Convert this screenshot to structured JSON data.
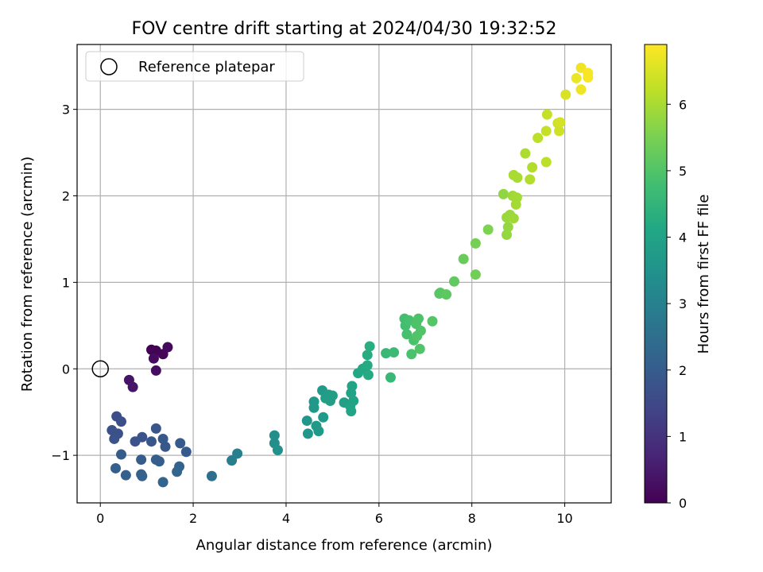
{
  "chart_data": {
    "type": "scatter",
    "title": "FOV centre drift starting at 2024/04/30 19:32:52",
    "xlabel": "Angular distance from reference (arcmin)",
    "ylabel": "Rotation from reference (arcmin)",
    "xlim": [
      -0.5,
      11.0
    ],
    "ylim": [
      -1.55,
      3.75
    ],
    "xticks": [
      0,
      2,
      4,
      6,
      8,
      10
    ],
    "yticks": [
      -1,
      0,
      1,
      2,
      3
    ],
    "grid": true,
    "legend": {
      "placement": "top-left",
      "entries": [
        "Reference platepar"
      ]
    },
    "reference": {
      "x": 0.0,
      "y": 0.0
    },
    "colorbar": {
      "label": "Hours from first FF file",
      "colormap": "viridis",
      "range": [
        0,
        6.9
      ],
      "ticks": [
        0,
        1,
        2,
        3,
        4,
        5,
        6
      ]
    },
    "points": [
      {
        "x": 1.1,
        "y": 0.22,
        "c": 0.0
      },
      {
        "x": 1.2,
        "y": 0.21,
        "c": 0.05
      },
      {
        "x": 1.35,
        "y": 0.17,
        "c": 0.1
      },
      {
        "x": 1.45,
        "y": 0.25,
        "c": 0.15
      },
      {
        "x": 1.15,
        "y": 0.12,
        "c": 0.2
      },
      {
        "x": 1.2,
        "y": -0.02,
        "c": 0.25
      },
      {
        "x": 0.62,
        "y": -0.13,
        "c": 0.35
      },
      {
        "x": 0.7,
        "y": -0.21,
        "c": 0.4
      },
      {
        "x": 0.35,
        "y": -0.55,
        "c": 1.6
      },
      {
        "x": 0.45,
        "y": -0.61,
        "c": 1.65
      },
      {
        "x": 0.25,
        "y": -0.71,
        "c": 1.7
      },
      {
        "x": 0.38,
        "y": -0.75,
        "c": 1.7
      },
      {
        "x": 0.3,
        "y": -0.81,
        "c": 1.75
      },
      {
        "x": 0.75,
        "y": -0.84,
        "c": 1.8
      },
      {
        "x": 0.9,
        "y": -0.79,
        "c": 1.8
      },
      {
        "x": 1.1,
        "y": -0.84,
        "c": 1.85
      },
      {
        "x": 1.2,
        "y": -0.69,
        "c": 1.85
      },
      {
        "x": 1.35,
        "y": -0.81,
        "c": 1.9
      },
      {
        "x": 1.4,
        "y": -0.9,
        "c": 1.9
      },
      {
        "x": 1.72,
        "y": -0.86,
        "c": 1.95
      },
      {
        "x": 1.85,
        "y": -0.96,
        "c": 1.95
      },
      {
        "x": 0.45,
        "y": -0.99,
        "c": 2.0
      },
      {
        "x": 0.88,
        "y": -1.05,
        "c": 2.0
      },
      {
        "x": 1.2,
        "y": -1.05,
        "c": 2.05
      },
      {
        "x": 1.27,
        "y": -1.07,
        "c": 2.05
      },
      {
        "x": 0.33,
        "y": -1.15,
        "c": 2.1
      },
      {
        "x": 0.55,
        "y": -1.23,
        "c": 2.1
      },
      {
        "x": 0.88,
        "y": -1.22,
        "c": 2.15
      },
      {
        "x": 0.9,
        "y": -1.24,
        "c": 2.15
      },
      {
        "x": 1.35,
        "y": -1.31,
        "c": 2.2
      },
      {
        "x": 1.7,
        "y": -1.13,
        "c": 2.2
      },
      {
        "x": 1.65,
        "y": -1.19,
        "c": 2.25
      },
      {
        "x": 2.4,
        "y": -1.24,
        "c": 2.5
      },
      {
        "x": 2.83,
        "y": -1.06,
        "c": 2.9
      },
      {
        "x": 2.95,
        "y": -0.98,
        "c": 3.0
      },
      {
        "x": 3.75,
        "y": -0.77,
        "c": 3.4
      },
      {
        "x": 3.75,
        "y": -0.86,
        "c": 3.4
      },
      {
        "x": 3.82,
        "y": -0.94,
        "c": 3.45
      },
      {
        "x": 4.45,
        "y": -0.6,
        "c": 3.6
      },
      {
        "x": 4.47,
        "y": -0.75,
        "c": 3.6
      },
      {
        "x": 4.6,
        "y": -0.38,
        "c": 3.65
      },
      {
        "x": 4.6,
        "y": -0.45,
        "c": 3.65
      },
      {
        "x": 4.65,
        "y": -0.66,
        "c": 3.7
      },
      {
        "x": 4.7,
        "y": -0.72,
        "c": 3.7
      },
      {
        "x": 4.78,
        "y": -0.25,
        "c": 3.75
      },
      {
        "x": 4.8,
        "y": -0.56,
        "c": 3.75
      },
      {
        "x": 4.85,
        "y": -0.34,
        "c": 3.8
      },
      {
        "x": 4.92,
        "y": -0.3,
        "c": 3.8
      },
      {
        "x": 4.95,
        "y": -0.37,
        "c": 3.85
      },
      {
        "x": 5.0,
        "y": -0.31,
        "c": 3.85
      },
      {
        "x": 5.25,
        "y": -0.39,
        "c": 3.9
      },
      {
        "x": 5.38,
        "y": -0.43,
        "c": 3.95
      },
      {
        "x": 5.4,
        "y": -0.28,
        "c": 3.95
      },
      {
        "x": 5.42,
        "y": -0.2,
        "c": 4.0
      },
      {
        "x": 5.45,
        "y": -0.37,
        "c": 4.0
      },
      {
        "x": 5.4,
        "y": -0.49,
        "c": 4.05
      },
      {
        "x": 5.55,
        "y": -0.05,
        "c": 4.1
      },
      {
        "x": 5.65,
        "y": 0.0,
        "c": 4.15
      },
      {
        "x": 5.75,
        "y": 0.04,
        "c": 4.2
      },
      {
        "x": 5.77,
        "y": -0.07,
        "c": 4.2
      },
      {
        "x": 5.75,
        "y": 0.16,
        "c": 4.25
      },
      {
        "x": 5.8,
        "y": 0.26,
        "c": 4.3
      },
      {
        "x": 6.15,
        "y": 0.18,
        "c": 4.6
      },
      {
        "x": 6.25,
        "y": -0.1,
        "c": 4.6
      },
      {
        "x": 6.32,
        "y": 0.19,
        "c": 4.65
      },
      {
        "x": 6.55,
        "y": 0.58,
        "c": 4.8
      },
      {
        "x": 6.57,
        "y": 0.5,
        "c": 4.8
      },
      {
        "x": 6.6,
        "y": 0.4,
        "c": 4.85
      },
      {
        "x": 6.65,
        "y": 0.56,
        "c": 4.85
      },
      {
        "x": 6.7,
        "y": 0.17,
        "c": 4.9
      },
      {
        "x": 6.75,
        "y": 0.33,
        "c": 4.9
      },
      {
        "x": 6.8,
        "y": 0.52,
        "c": 4.95
      },
      {
        "x": 6.85,
        "y": 0.58,
        "c": 4.95
      },
      {
        "x": 6.82,
        "y": 0.38,
        "c": 5.0
      },
      {
        "x": 6.9,
        "y": 0.44,
        "c": 5.0
      },
      {
        "x": 6.88,
        "y": 0.23,
        "c": 5.0
      },
      {
        "x": 7.15,
        "y": 0.55,
        "c": 5.05
      },
      {
        "x": 7.3,
        "y": 0.87,
        "c": 5.1
      },
      {
        "x": 7.32,
        "y": 0.88,
        "c": 5.1
      },
      {
        "x": 7.45,
        "y": 0.86,
        "c": 5.15
      },
      {
        "x": 7.62,
        "y": 1.01,
        "c": 5.2
      },
      {
        "x": 7.82,
        "y": 1.27,
        "c": 5.3
      },
      {
        "x": 8.08,
        "y": 1.09,
        "c": 5.4
      },
      {
        "x": 8.08,
        "y": 1.45,
        "c": 5.45
      },
      {
        "x": 8.35,
        "y": 1.61,
        "c": 5.55
      },
      {
        "x": 8.68,
        "y": 2.02,
        "c": 5.75
      },
      {
        "x": 8.75,
        "y": 1.55,
        "c": 5.8
      },
      {
        "x": 8.78,
        "y": 1.64,
        "c": 5.8
      },
      {
        "x": 8.75,
        "y": 1.75,
        "c": 5.85
      },
      {
        "x": 8.82,
        "y": 1.78,
        "c": 5.85
      },
      {
        "x": 8.9,
        "y": 1.74,
        "c": 5.9
      },
      {
        "x": 8.88,
        "y": 2.0,
        "c": 5.9
      },
      {
        "x": 8.95,
        "y": 1.9,
        "c": 5.95
      },
      {
        "x": 8.97,
        "y": 1.98,
        "c": 5.95
      },
      {
        "x": 8.9,
        "y": 2.24,
        "c": 6.0
      },
      {
        "x": 8.98,
        "y": 2.21,
        "c": 6.0
      },
      {
        "x": 9.15,
        "y": 2.49,
        "c": 6.05
      },
      {
        "x": 9.25,
        "y": 2.19,
        "c": 6.1
      },
      {
        "x": 9.3,
        "y": 2.33,
        "c": 6.1
      },
      {
        "x": 9.6,
        "y": 2.39,
        "c": 6.2
      },
      {
        "x": 9.42,
        "y": 2.67,
        "c": 6.2
      },
      {
        "x": 9.6,
        "y": 2.75,
        "c": 6.3
      },
      {
        "x": 9.62,
        "y": 2.94,
        "c": 6.3
      },
      {
        "x": 9.85,
        "y": 2.84,
        "c": 6.4
      },
      {
        "x": 9.88,
        "y": 2.75,
        "c": 6.4
      },
      {
        "x": 9.9,
        "y": 2.85,
        "c": 6.45
      },
      {
        "x": 10.02,
        "y": 3.17,
        "c": 6.5
      },
      {
        "x": 10.25,
        "y": 3.36,
        "c": 6.7
      },
      {
        "x": 10.35,
        "y": 3.48,
        "c": 6.75
      },
      {
        "x": 10.35,
        "y": 3.23,
        "c": 6.75
      },
      {
        "x": 10.5,
        "y": 3.42,
        "c": 6.85
      },
      {
        "x": 10.5,
        "y": 3.37,
        "c": 6.85
      }
    ]
  }
}
